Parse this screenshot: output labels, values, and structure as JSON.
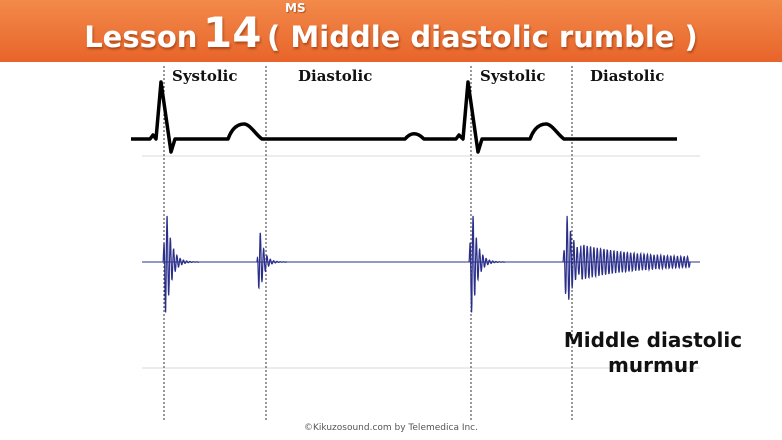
{
  "header": {
    "title_prefix": "Lesson",
    "lesson_number": "14",
    "title_main": "( Middle diastolic rumble )",
    "superscript": "MS",
    "background_color": "#e8642a"
  },
  "phases": {
    "systolic_1": "Systolic",
    "diastolic_1": "Diastolic",
    "systolic_2": "Systolic",
    "diastolic_2": "Diastolic"
  },
  "annotation": {
    "murmur_line1": "Middle diastolic",
    "murmur_line2": "murmur"
  },
  "footer": {
    "copyright": "©Kikuzosound.com by Telemedica Inc."
  },
  "colors": {
    "ecg": "#000000",
    "phonocardiogram": "#2b2f8a",
    "guide_lines": "#333333",
    "grid_lines": "#d9d9d9"
  }
}
